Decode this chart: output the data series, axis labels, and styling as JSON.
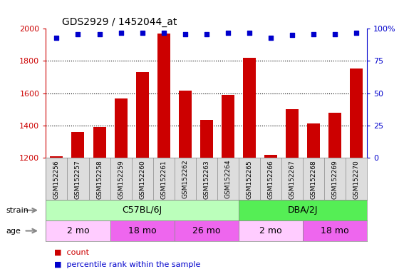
{
  "title": "GDS2929 / 1452044_at",
  "samples": [
    "GSM152256",
    "GSM152257",
    "GSM152258",
    "GSM152259",
    "GSM152260",
    "GSM152261",
    "GSM152262",
    "GSM152263",
    "GSM152264",
    "GSM152265",
    "GSM152266",
    "GSM152267",
    "GSM152268",
    "GSM152269",
    "GSM152270"
  ],
  "counts": [
    1207,
    1358,
    1390,
    1565,
    1730,
    1970,
    1615,
    1435,
    1590,
    1820,
    1215,
    1500,
    1410,
    1480,
    1755
  ],
  "percentiles": [
    93,
    96,
    96,
    97,
    97,
    97,
    96,
    96,
    97,
    97,
    93,
    95,
    96,
    96,
    97
  ],
  "ylim_left": [
    1200,
    2000
  ],
  "ylim_right": [
    0,
    100
  ],
  "bar_color": "#cc0000",
  "dot_color": "#0000cc",
  "strain_groups": [
    {
      "label": "C57BL/6J",
      "start": 0,
      "end": 9,
      "color": "#bbffbb"
    },
    {
      "label": "DBA/2J",
      "start": 9,
      "end": 15,
      "color": "#55ee55"
    }
  ],
  "age_groups": [
    {
      "label": "2 mo",
      "start": 0,
      "end": 3,
      "color": "#ffccff"
    },
    {
      "label": "18 mo",
      "start": 3,
      "end": 6,
      "color": "#ee66ee"
    },
    {
      "label": "26 mo",
      "start": 6,
      "end": 9,
      "color": "#ee66ee"
    },
    {
      "label": "2 mo",
      "start": 9,
      "end": 12,
      "color": "#ffccff"
    },
    {
      "label": "18 mo",
      "start": 12,
      "end": 15,
      "color": "#ee66ee"
    }
  ],
  "bg_color": "#ffffff",
  "tick_color_left": "#cc0000",
  "tick_color_right": "#0000cc",
  "dotted_line_y": [
    1400,
    1600,
    1800
  ],
  "left_ticks": [
    1200,
    1400,
    1600,
    1800,
    2000
  ],
  "right_ticks": [
    0,
    25,
    50,
    75,
    100
  ],
  "right_tick_labels": [
    "0",
    "25",
    "50",
    "75",
    "100%"
  ],
  "xlabel_bg": "#dddddd",
  "bar_width": 0.6
}
